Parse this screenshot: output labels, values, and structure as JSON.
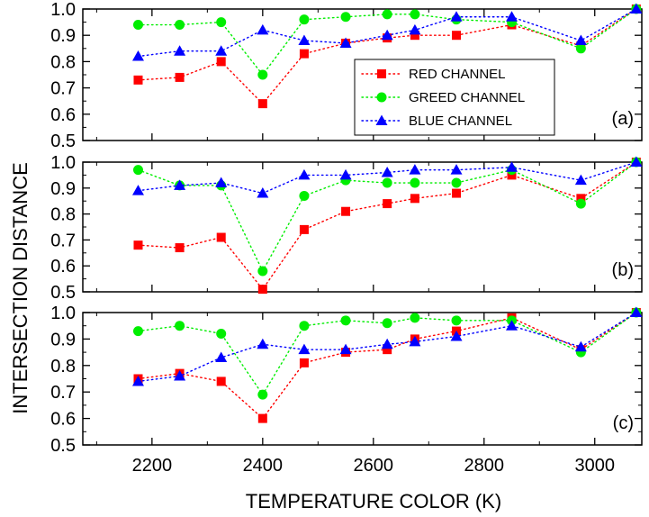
{
  "figure": {
    "ylabel": "INTERSECTION DISTANCE",
    "xlabel": "TEMPERATURE COLOR (K)"
  },
  "legend": {
    "entries": [
      "RED CHANNEL",
      "GREED CHANNEL",
      "BLUE CHANNEL"
    ]
  },
  "colors": {
    "red": "#ff0000",
    "green": "#00ee00",
    "blue": "#0000ff",
    "axis": "#000000"
  },
  "chart_data": [
    {
      "type": "scatter",
      "panel_label": "(a)",
      "x": [
        2175,
        2250,
        2325,
        2400,
        2475,
        2550,
        2625,
        2675,
        2750,
        2850,
        2975,
        3075
      ],
      "xlim": [
        2075,
        3085
      ],
      "ylim": [
        0.5,
        1.0
      ],
      "xticks": [
        2200,
        2400,
        2600,
        2800,
        3000
      ],
      "yticks": [
        0.5,
        0.6,
        0.7,
        0.8,
        0.9,
        1.0
      ],
      "ytick_labels": [
        "0.5",
        "0.6",
        "0.7",
        "0.8",
        "0.9",
        "1.0"
      ],
      "line_style": "dotted",
      "grid": false,
      "legend_position": "center-right",
      "series": [
        {
          "name": "RED CHANNEL",
          "marker": "square",
          "color": "#ff0000",
          "values": [
            0.73,
            0.74,
            0.8,
            0.64,
            0.83,
            0.87,
            0.89,
            0.9,
            0.9,
            0.94,
            0.86,
            1.0
          ]
        },
        {
          "name": "GREED CHANNEL",
          "marker": "circle",
          "color": "#00ee00",
          "values": [
            0.94,
            0.94,
            0.95,
            0.75,
            0.96,
            0.97,
            0.98,
            0.98,
            0.96,
            0.95,
            0.85,
            1.0
          ]
        },
        {
          "name": "BLUE CHANNEL",
          "marker": "triangle",
          "color": "#0000ff",
          "values": [
            0.82,
            0.84,
            0.84,
            0.92,
            0.88,
            0.87,
            0.9,
            0.92,
            0.97,
            0.97,
            0.88,
            1.0
          ]
        }
      ]
    },
    {
      "type": "scatter",
      "panel_label": "(b)",
      "x": [
        2175,
        2250,
        2325,
        2400,
        2475,
        2550,
        2625,
        2675,
        2750,
        2850,
        2975,
        3075
      ],
      "xlim": [
        2075,
        3085
      ],
      "ylim": [
        0.5,
        1.0
      ],
      "xticks": [
        2200,
        2400,
        2600,
        2800,
        3000
      ],
      "yticks": [
        0.5,
        0.6,
        0.7,
        0.8,
        0.9,
        1.0
      ],
      "ytick_labels": [
        "0.5",
        "0.6",
        "0.7",
        "0.8",
        "0.9",
        "1.0"
      ],
      "line_style": "dotted",
      "grid": false,
      "series": [
        {
          "name": "RED CHANNEL",
          "marker": "square",
          "color": "#ff0000",
          "values": [
            0.68,
            0.67,
            0.71,
            0.51,
            0.74,
            0.81,
            0.84,
            0.86,
            0.88,
            0.95,
            0.86,
            1.0
          ]
        },
        {
          "name": "GREED CHANNEL",
          "marker": "circle",
          "color": "#00ee00",
          "values": [
            0.97,
            0.91,
            0.91,
            0.58,
            0.87,
            0.93,
            0.92,
            0.92,
            0.92,
            0.97,
            0.84,
            1.0
          ]
        },
        {
          "name": "BLUE CHANNEL",
          "marker": "triangle",
          "color": "#0000ff",
          "values": [
            0.89,
            0.91,
            0.92,
            0.88,
            0.95,
            0.95,
            0.96,
            0.97,
            0.97,
            0.98,
            0.93,
            1.0
          ]
        }
      ]
    },
    {
      "type": "scatter",
      "panel_label": "(c)",
      "x": [
        2175,
        2250,
        2325,
        2400,
        2475,
        2550,
        2625,
        2675,
        2750,
        2850,
        2975,
        3075
      ],
      "xlim": [
        2075,
        3085
      ],
      "ylim": [
        0.5,
        1.0
      ],
      "xticks": [
        2200,
        2400,
        2600,
        2800,
        3000
      ],
      "xtick_labels": [
        "2200",
        "2400",
        "2600",
        "2800",
        "3000"
      ],
      "yticks": [
        0.5,
        0.6,
        0.7,
        0.8,
        0.9,
        1.0
      ],
      "ytick_labels": [
        "0.5",
        "0.6",
        "0.7",
        "0.8",
        "0.9",
        "1.0"
      ],
      "line_style": "dotted",
      "grid": false,
      "series": [
        {
          "name": "RED CHANNEL",
          "marker": "square",
          "color": "#ff0000",
          "values": [
            0.75,
            0.77,
            0.74,
            0.6,
            0.81,
            0.85,
            0.86,
            0.9,
            0.93,
            0.98,
            0.86,
            1.0
          ]
        },
        {
          "name": "GREED CHANNEL",
          "marker": "circle",
          "color": "#00ee00",
          "values": [
            0.93,
            0.95,
            0.92,
            0.69,
            0.95,
            0.97,
            0.96,
            0.98,
            0.97,
            0.97,
            0.85,
            1.0
          ]
        },
        {
          "name": "BLUE CHANNEL",
          "marker": "triangle",
          "color": "#0000ff",
          "values": [
            0.74,
            0.76,
            0.83,
            0.88,
            0.86,
            0.86,
            0.88,
            0.89,
            0.91,
            0.95,
            0.87,
            1.0
          ]
        }
      ]
    }
  ]
}
